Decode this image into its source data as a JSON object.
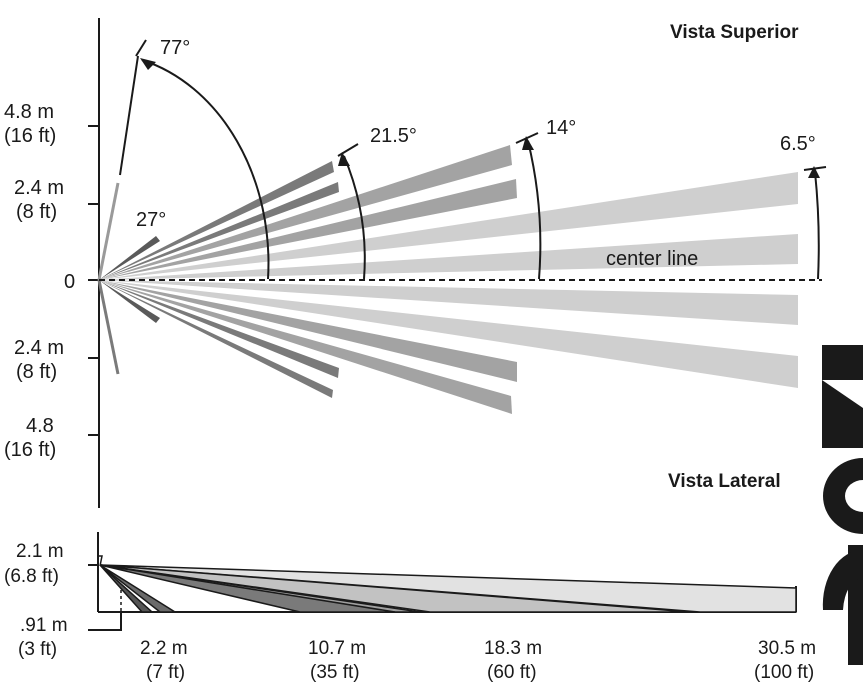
{
  "top_view": {
    "title": "Vista Superior",
    "y_labels": {
      "m48_upper": "4.8 m",
      "ft16_upper": "(16 ft)",
      "m24_upper": "2.4 m",
      "ft8_upper": "(8 ft)",
      "zero": "0",
      "m24_lower": "2.4 m",
      "ft8_lower": "(8 ft)",
      "m48_lower": "4.8",
      "ft16_lower": "(16 ft)"
    },
    "angles": {
      "a77": "77°",
      "a27": "27°",
      "a215": "21.5°",
      "a14": "14°",
      "a65": "6.5°"
    },
    "center_line": "center line",
    "colors": {
      "dark": "#707070",
      "mid_dark": "#8a8a8a",
      "mid": "#a3a3a3",
      "light": "#cfcfcf"
    }
  },
  "side_view": {
    "title": "Vista Lateral",
    "y_labels": {
      "height_m": "2.1 m",
      "height_ft": "(6.8 ft)",
      "low_m": ".91 m",
      "low_ft": "(3 ft)"
    },
    "x_labels": {
      "d22_m": "2.2 m",
      "d22_ft": "(7 ft)",
      "d107_m": "10.7 m",
      "d107_ft": "(35 ft)",
      "d183_m": "18.3 m",
      "d183_ft": "(60 ft)",
      "d305_m": "30.5 m",
      "d305_ft": "(100 ft)"
    }
  },
  "watermark": {
    "color": "#1a1a1a"
  }
}
